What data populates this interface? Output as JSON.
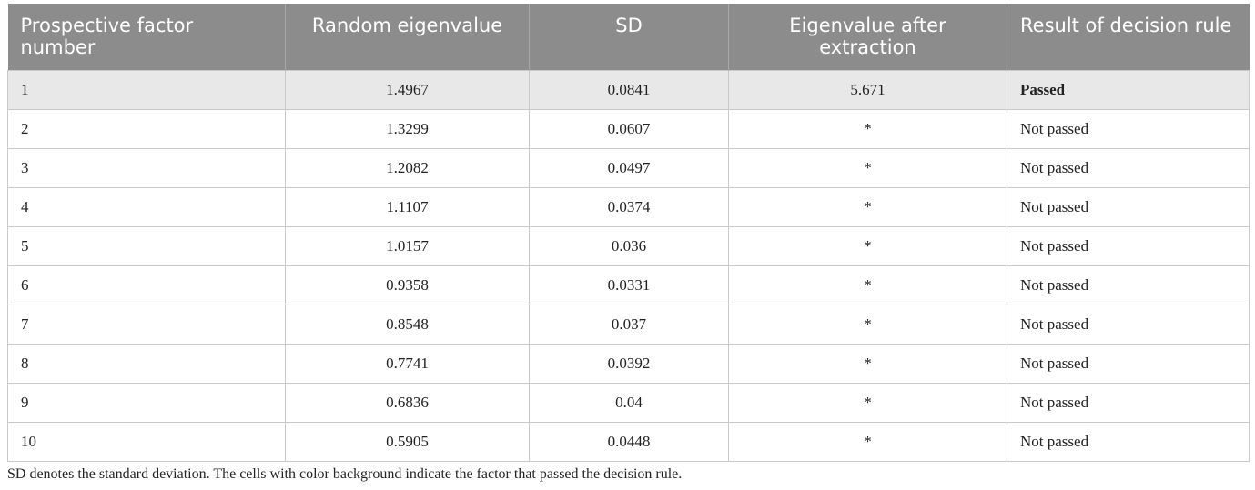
{
  "table": {
    "headers": [
      "Prospective factor number",
      "Random eigenvalue",
      "SD",
      "Eigenvalue after extraction",
      "Result of decision rule"
    ],
    "rows": [
      {
        "factor": "1",
        "random": "1.4967",
        "sd": "0.0841",
        "eigen": "5.671",
        "result": "Passed"
      },
      {
        "factor": "2",
        "random": "1.3299",
        "sd": "0.0607",
        "eigen": "*",
        "result": "Not passed"
      },
      {
        "factor": "3",
        "random": "1.2082",
        "sd": "0.0497",
        "eigen": "*",
        "result": "Not passed"
      },
      {
        "factor": "4",
        "random": "1.1107",
        "sd": "0.0374",
        "eigen": "*",
        "result": "Not passed"
      },
      {
        "factor": "5",
        "random": "1.0157",
        "sd": "0.036",
        "eigen": "*",
        "result": "Not passed"
      },
      {
        "factor": "6",
        "random": "0.9358",
        "sd": "0.0331",
        "eigen": "*",
        "result": "Not passed"
      },
      {
        "factor": "7",
        "random": "0.8548",
        "sd": "0.037",
        "eigen": "*",
        "result": "Not passed"
      },
      {
        "factor": "8",
        "random": "0.7741",
        "sd": "0.0392",
        "eigen": "*",
        "result": "Not passed"
      },
      {
        "factor": "9",
        "random": "0.6836",
        "sd": "0.04",
        "eigen": "*",
        "result": "Not passed"
      },
      {
        "factor": "10",
        "random": "0.5905",
        "sd": "0.0448",
        "eigen": "*",
        "result": "Not passed"
      }
    ],
    "highlight_color": "#e8e8e8",
    "header_color": "#8c8c8c"
  },
  "footnote": "SD denotes the standard deviation. The cells with color background indicate the factor that passed the decision rule."
}
